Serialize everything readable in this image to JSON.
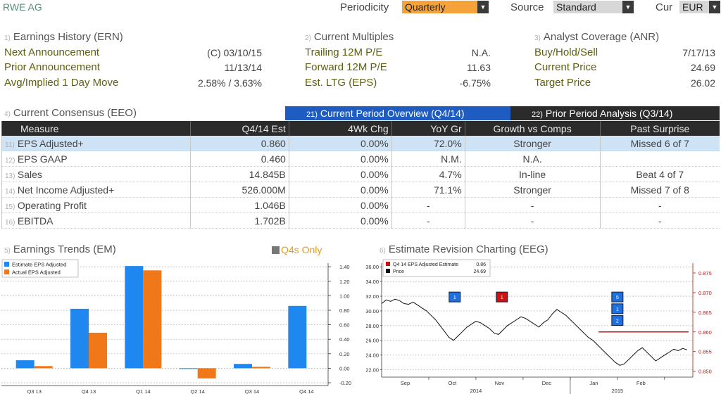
{
  "header": {
    "security": "RWE AG",
    "periodicity_label": "Periodicity",
    "periodicity_value": "Quarterly",
    "source_label": "Source",
    "source_value": "Standard",
    "cur_label": "Cur",
    "cur_value": "EUR"
  },
  "earnings_history": {
    "num": "1)",
    "title": "Earnings History (ERN)",
    "rows": [
      {
        "label": "Next Announcement",
        "value": "(C)  03/10/15"
      },
      {
        "label": "Prior Announcement",
        "value": "11/13/14"
      },
      {
        "label": "Avg/Implied 1 Day Move",
        "value": "2.58% / 3.63%"
      }
    ]
  },
  "current_multiples": {
    "num": "2)",
    "title": "Current Multiples",
    "rows": [
      {
        "label": "Trailing 12M P/E",
        "value": "N.A."
      },
      {
        "label": "Forward 12M P/E",
        "value": "11.63"
      },
      {
        "label": "Est. LTG (EPS)",
        "value": "-6.75%"
      }
    ]
  },
  "analyst_coverage": {
    "num": "3)",
    "title": "Analyst Coverage (ANR)",
    "rows": [
      {
        "label": "Buy/Hold/Sell",
        "value": "7/17/13"
      },
      {
        "label": "Current Price",
        "value": "24.69"
      },
      {
        "label": "Target Price",
        "value": "26.02"
      }
    ]
  },
  "consensus": {
    "num": "4)",
    "title": "Current Consensus (EEO)",
    "tab_current": {
      "num": "21)",
      "label": "Current Period Overview (Q4/14)"
    },
    "tab_prior": {
      "num": "22)",
      "label": "Prior Period Analysis (Q3/14)"
    },
    "columns": [
      "Measure",
      "Q4/14 Est",
      "4Wk Chg",
      "YoY Gr",
      "Growth vs Comps",
      "Past Surprise"
    ],
    "rows": [
      {
        "num": "11)",
        "measure": "EPS Adjusted+",
        "est": "0.860",
        "chg": "0.00%",
        "yoy": "72.0%",
        "comps": "Stronger",
        "surprise": "Missed 6 of 7"
      },
      {
        "num": "12)",
        "measure": "EPS GAAP",
        "est": "0.460",
        "chg": "0.00%",
        "yoy": "N.M.",
        "comps": "N.A.",
        "surprise": ""
      },
      {
        "num": "13)",
        "measure": "Sales",
        "est": "14.845B",
        "chg": "0.00%",
        "yoy": "4.7%",
        "comps": "In-line",
        "surprise": "Beat 4 of 7"
      },
      {
        "num": "14)",
        "measure": "Net Income Adjusted+",
        "est": "526.000M",
        "chg": "0.00%",
        "yoy": "71.1%",
        "comps": "Stronger",
        "surprise": "Missed 7 of 8"
      },
      {
        "num": "15)",
        "measure": "Operating Profit",
        "est": "1.046B",
        "chg": "0.00%",
        "yoy": "-",
        "comps": "-",
        "surprise": "-"
      },
      {
        "num": "16)",
        "measure": "EBITDA",
        "est": "1.702B",
        "chg": "0.00%",
        "yoy": "-",
        "comps": "-",
        "surprise": "-"
      }
    ]
  },
  "earnings_trends": {
    "num": "5)",
    "title": "Earnings Trends (EM)",
    "q4s_only": "Q4s Only"
  },
  "estimate_revision": {
    "num": "6)",
    "title": "Estimate Revision Charting (EEG)"
  },
  "chart_data": [
    {
      "type": "bar",
      "categories": [
        "Q3 13",
        "Q4 13",
        "Q1 14",
        "Q2 14",
        "Q3 14",
        "Q4 14"
      ],
      "series": [
        {
          "name": "Estimate EPS Adjusted",
          "color": "#1e88f0",
          "values": [
            0.11,
            0.82,
            1.41,
            0.0,
            0.06,
            0.86
          ]
        },
        {
          "name": "Actual EPS Adjusted",
          "color": "#f07818",
          "values": [
            0.03,
            0.49,
            1.35,
            -0.14,
            0.02,
            null
          ]
        }
      ],
      "yticks": [
        "1.40",
        "1.20",
        "1.00",
        "0.80",
        "0.60",
        "0.40",
        "0.20",
        "0.00",
        "-0.20"
      ],
      "ylim": [
        -0.2,
        1.45
      ],
      "legend": "top-left"
    },
    {
      "type": "line",
      "series": [
        {
          "name": "Q4 14 EPS Adjusted Estimate",
          "legend_value": "0.86",
          "color": "#d01010",
          "axis": "right"
        },
        {
          "name": "Price",
          "legend_value": "24.69",
          "color": "#111111",
          "axis": "left"
        }
      ],
      "left_ticks": [
        "36.00",
        "34.00",
        "32.00",
        "30.00",
        "28.00",
        "26.00",
        "24.00",
        "22.00"
      ],
      "left_ylim": [
        21.0,
        36.5
      ],
      "right_ticks": [
        "0.875",
        "0.870",
        "0.865",
        "0.860",
        "0.855",
        "0.850"
      ],
      "right_ylim": [
        0.8485,
        0.8775
      ],
      "month_ticks": [
        "Sep",
        "Oct",
        "Nov",
        "Dec",
        "Jan",
        "Feb"
      ],
      "year_ticks": [
        "2014",
        "2015"
      ],
      "price_points": [
        31.0,
        31.5,
        31.3,
        31.6,
        31.4,
        31.0,
        30.9,
        31.2,
        30.8,
        30.4,
        30.0,
        29.4,
        28.8,
        28.0,
        27.2,
        26.4,
        26.0,
        26.6,
        27.2,
        27.8,
        28.2,
        28.6,
        28.4,
        28.0,
        27.6,
        27.0,
        26.8,
        27.4,
        28.0,
        28.4,
        28.8,
        29.2,
        29.0,
        28.6,
        28.2,
        27.8,
        28.4,
        28.8,
        29.6,
        30.2,
        29.8,
        29.4,
        28.8,
        28.2,
        27.6,
        27.0,
        26.4,
        26.0,
        25.4,
        24.8,
        24.2,
        23.6,
        23.0,
        22.6,
        22.8,
        23.4,
        24.0,
        24.6,
        25.0,
        24.4,
        23.8,
        23.2,
        23.6,
        24.0,
        24.4,
        24.8,
        24.6,
        24.9,
        24.7
      ],
      "estimate_line_value": 0.86,
      "revision_markers": [
        {
          "label": "1",
          "color": "#1e6fe0",
          "value": 31.8
        },
        {
          "label": "1",
          "color": "#d01010",
          "value": 31.8
        },
        {
          "label": "5",
          "color": "#1e6fe0",
          "value": 31.8
        },
        {
          "label": "1",
          "color": "#1e6fe0",
          "value": 30.2
        },
        {
          "label": "2",
          "color": "#1e6fe0",
          "value": 28.6
        }
      ]
    }
  ]
}
